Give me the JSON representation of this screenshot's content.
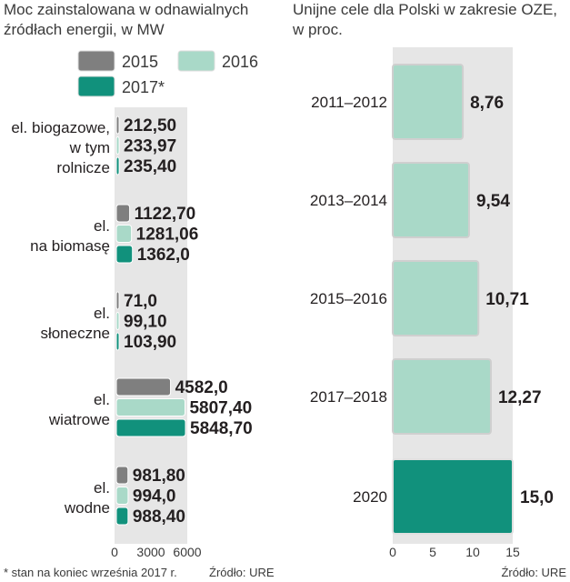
{
  "left_chart": {
    "title_line1": "Moc zainstalowana w odnawialnych",
    "title_line2": "źródłach energii, w MW",
    "legend": [
      {
        "label": "2015",
        "color": "#7f7f7f"
      },
      {
        "label": "2016",
        "color": "#a9d9c8"
      },
      {
        "label": "2017*",
        "color": "#11917c"
      }
    ],
    "footnote": "* stan na koniec września 2017 r.",
    "source": "Źródło: URE"
  },
  "right_chart": {
    "title_line1": "Unijne cele dla Polski w zakresie OZE,",
    "title_line2": "w proc.",
    "source": "Źródło: URE"
  },
  "chart_data": [
    {
      "type": "bar",
      "orientation": "horizontal",
      "title": "Moc zainstalowana w odnawialnych źródłach energii, w MW",
      "categories": [
        [
          "el. biogazowe,",
          "w tym",
          "rolnicze"
        ],
        [
          "el.",
          "na biomasę"
        ],
        [
          "el.",
          "słoneczne"
        ],
        [
          "el.",
          "wiatrowe"
        ],
        [
          "el.",
          "wodne"
        ]
      ],
      "series": [
        {
          "name": "2015",
          "values": [
            212.5,
            1122.7,
            71.0,
            4582.0,
            981.8
          ],
          "labels": [
            "212,50",
            "1122,70",
            "71,0",
            "4582,0",
            "981,80"
          ]
        },
        {
          "name": "2016",
          "values": [
            233.97,
            1281.06,
            99.1,
            5807.4,
            994.0
          ],
          "labels": [
            "233,97",
            "1281,06",
            "99,10",
            "5807,40",
            "994,0"
          ]
        },
        {
          "name": "2017*",
          "values": [
            235.4,
            1362.0,
            103.9,
            5848.7,
            988.4
          ],
          "labels": [
            "235,40",
            "1362,0",
            "103,90",
            "5848,70",
            "988,40"
          ]
        }
      ],
      "xlim": [
        0,
        6000
      ],
      "xticks": [
        "0",
        "3000",
        "6000"
      ]
    },
    {
      "type": "bar",
      "orientation": "horizontal",
      "title": "Unijne cele dla Polski w zakresie OZE, w proc.",
      "categories": [
        "2011–2012",
        "2013–2014",
        "2015–2016",
        "2017–2018",
        "2020"
      ],
      "values": [
        8.76,
        9.54,
        10.71,
        12.27,
        15.0
      ],
      "labels": [
        "8,76",
        "9,54",
        "10,71",
        "12,27",
        "15,0"
      ],
      "highlight": "2020",
      "xlim": [
        0,
        15
      ],
      "xticks": [
        "0",
        "5",
        "10",
        "15"
      ]
    }
  ]
}
